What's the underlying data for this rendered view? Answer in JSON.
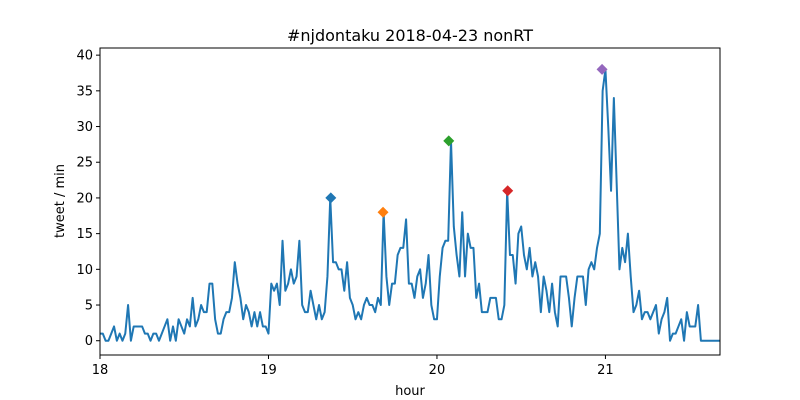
{
  "chart_data": {
    "type": "line",
    "title": "#njdontaku 2018-04-23 nonRT",
    "xlabel": "hour",
    "ylabel": "tweet / min",
    "xlim": [
      18,
      21.68
    ],
    "ylim": [
      -2,
      41
    ],
    "xticks": [
      18,
      19,
      20,
      21
    ],
    "yticks": [
      0,
      5,
      10,
      15,
      20,
      25,
      30,
      35,
      40
    ],
    "grid": false,
    "line_color": "#1f77b4",
    "x_step_minutes": 1,
    "x_start_hour": 18,
    "series": [
      {
        "values": [
          1,
          1,
          0,
          0,
          1,
          2,
          0,
          1,
          0,
          1,
          5,
          0,
          2,
          2,
          2,
          2,
          1,
          1,
          0,
          1,
          1,
          0,
          1,
          2,
          3,
          0,
          2,
          0,
          3,
          2,
          1,
          3,
          2,
          6,
          2,
          3,
          5,
          4,
          4,
          8,
          8,
          3,
          1,
          1,
          3,
          4,
          4,
          6,
          11,
          8,
          6,
          3,
          5,
          4,
          2,
          4,
          2,
          4,
          2,
          2,
          1,
          8,
          7,
          8,
          5,
          14,
          7,
          8,
          10,
          8,
          9,
          14,
          5,
          4,
          4,
          7,
          5,
          3,
          5,
          3,
          4,
          9,
          20,
          11,
          11,
          10,
          10,
          7,
          11,
          6,
          5,
          3,
          4,
          3,
          5,
          6,
          5,
          5,
          4,
          6,
          5,
          18,
          9,
          5,
          8,
          8,
          12,
          13,
          13,
          17,
          8,
          8,
          6,
          9,
          10,
          6,
          8,
          12,
          5,
          3,
          3,
          9,
          13,
          14,
          14,
          28,
          16,
          12,
          9,
          18,
          9,
          15,
          13,
          13,
          6,
          8,
          4,
          4,
          4,
          6,
          6,
          6,
          3,
          3,
          5,
          21,
          12,
          12,
          8,
          15,
          16,
          12,
          10,
          13,
          9,
          11,
          9,
          4,
          9,
          7,
          4,
          8,
          4,
          2,
          9,
          9,
          9,
          6,
          2,
          6,
          9,
          9,
          9,
          5,
          10,
          11,
          10,
          13,
          15,
          35,
          38,
          30,
          21,
          34,
          22,
          10,
          13,
          11,
          15,
          9,
          4,
          5,
          7,
          3,
          4,
          4,
          3,
          4,
          5,
          1,
          3,
          4,
          6,
          0,
          1,
          1,
          2,
          3,
          0,
          4,
          2,
          2,
          2,
          5,
          0,
          0,
          0,
          0,
          0,
          0,
          0,
          0,
          0,
          0,
          0,
          0,
          0,
          0,
          0,
          0,
          0,
          0,
          0,
          0,
          0,
          0,
          0,
          0,
          0,
          0,
          0,
          0,
          0,
          0,
          0,
          0
        ]
      }
    ],
    "markers": [
      {
        "x": 19.37,
        "y": 20,
        "color": "#1f77b4"
      },
      {
        "x": 19.68,
        "y": 18,
        "color": "#ff7f0e"
      },
      {
        "x": 20.07,
        "y": 28,
        "color": "#2ca02c"
      },
      {
        "x": 20.42,
        "y": 21,
        "color": "#d62728"
      },
      {
        "x": 20.98,
        "y": 38,
        "color": "#9467bd"
      }
    ]
  }
}
